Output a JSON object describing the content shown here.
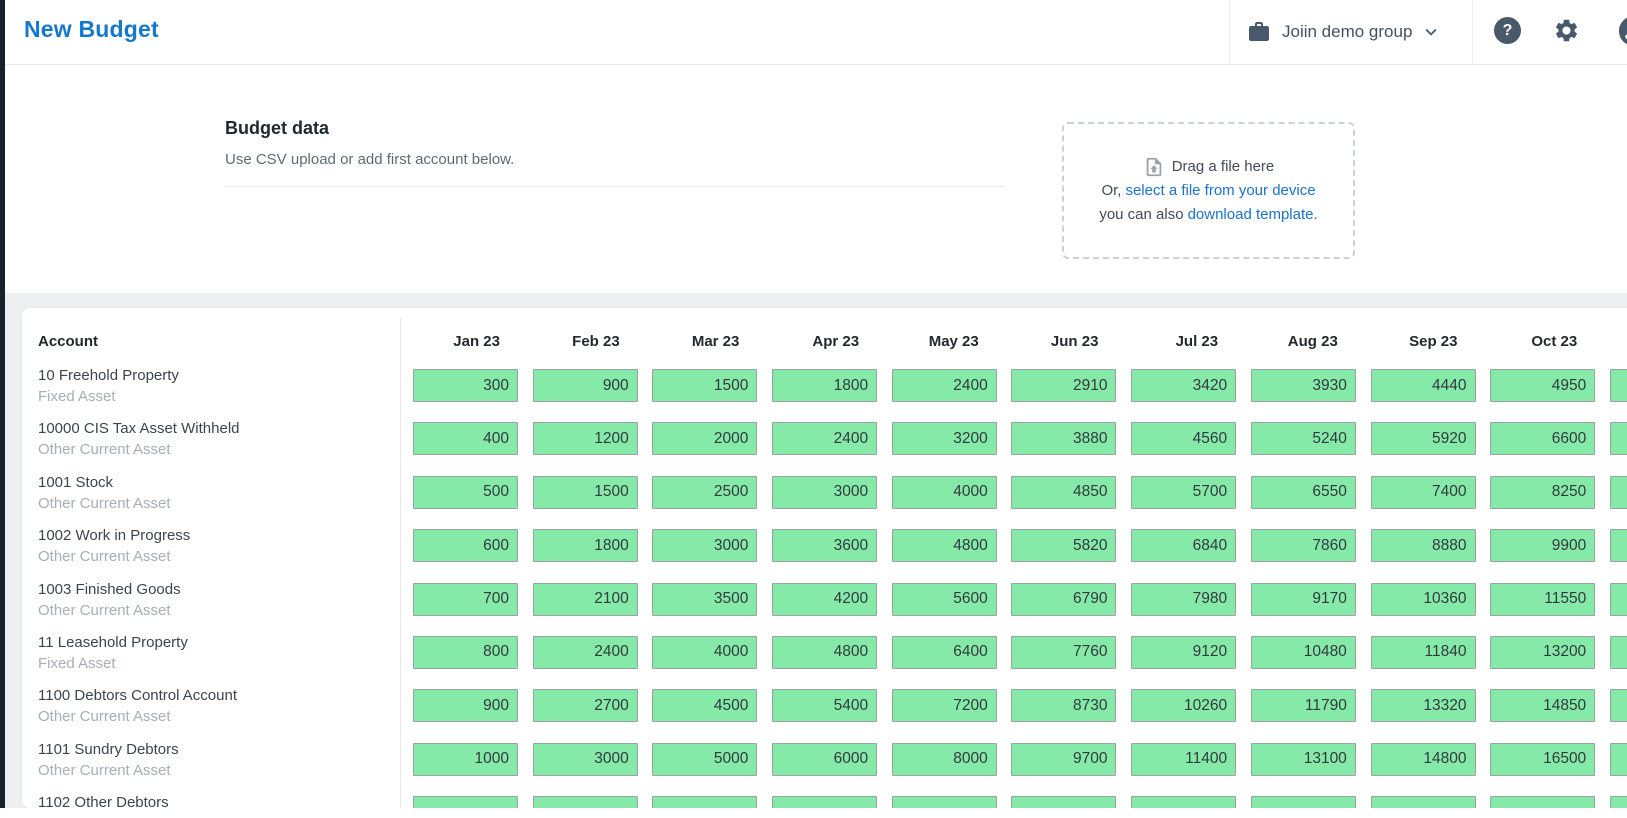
{
  "topbar": {
    "title": "New Budget",
    "group": {
      "label": "Joiin demo group"
    },
    "help_glyph": "?"
  },
  "budget_section": {
    "heading": "Budget data",
    "subheading": "Use CSV upload or add first account below.",
    "dropzone": {
      "drag_label": "Drag a file here",
      "or_prefix": "Or,",
      "select_link": "select a file from your device",
      "also_prefix": "you can also",
      "template_link": "download template."
    }
  },
  "table": {
    "account_header": "Account",
    "months": [
      "Jan 23",
      "Feb 23",
      "Mar 23",
      "Apr 23",
      "May 23",
      "Jun 23",
      "Jul 23",
      "Aug 23",
      "Sep 23",
      "Oct 23"
    ],
    "has_partial_next_column": true,
    "rows": [
      {
        "account": "10 Freehold Property",
        "type": "Fixed Asset",
        "values": [
          300,
          900,
          1500,
          1800,
          2400,
          2910,
          3420,
          3930,
          4440,
          4950
        ]
      },
      {
        "account": "10000 CIS Tax Asset Withheld",
        "type": "Other Current Asset",
        "values": [
          400,
          1200,
          2000,
          2400,
          3200,
          3880,
          4560,
          5240,
          5920,
          6600
        ]
      },
      {
        "account": "1001 Stock",
        "type": "Other Current Asset",
        "values": [
          500,
          1500,
          2500,
          3000,
          4000,
          4850,
          5700,
          6550,
          7400,
          8250
        ]
      },
      {
        "account": "1002 Work in Progress",
        "type": "Other Current Asset",
        "values": [
          600,
          1800,
          3000,
          3600,
          4800,
          5820,
          6840,
          7860,
          8880,
          9900
        ]
      },
      {
        "account": "1003 Finished Goods",
        "type": "Other Current Asset",
        "values": [
          700,
          2100,
          3500,
          4200,
          5600,
          6790,
          7980,
          9170,
          10360,
          11550
        ]
      },
      {
        "account": "11 Leasehold Property",
        "type": "Fixed Asset",
        "values": [
          800,
          2400,
          4000,
          4800,
          6400,
          7760,
          9120,
          10480,
          11840,
          13200
        ]
      },
      {
        "account": "1100 Debtors Control Account",
        "type": "Other Current Asset",
        "values": [
          900,
          2700,
          4500,
          5400,
          7200,
          8730,
          10260,
          11790,
          13320,
          14850
        ]
      },
      {
        "account": "1101 Sundry Debtors",
        "type": "Other Current Asset",
        "values": [
          1000,
          3000,
          5000,
          6000,
          8000,
          9700,
          11400,
          13100,
          14800,
          16500
        ]
      },
      {
        "account": "1102 Other Debtors",
        "type": "",
        "values": [
          "",
          "",
          "",
          "",
          "",
          "",
          "",
          "",
          "",
          ""
        ]
      }
    ]
  },
  "colors": {
    "accent_blue": "#1478cc",
    "link_blue": "#1b72ca",
    "icon_slate": "#47596b",
    "cell_green": "#85e9a7",
    "cell_border": "#9aa3a5",
    "page_bg": "#edeff0"
  }
}
